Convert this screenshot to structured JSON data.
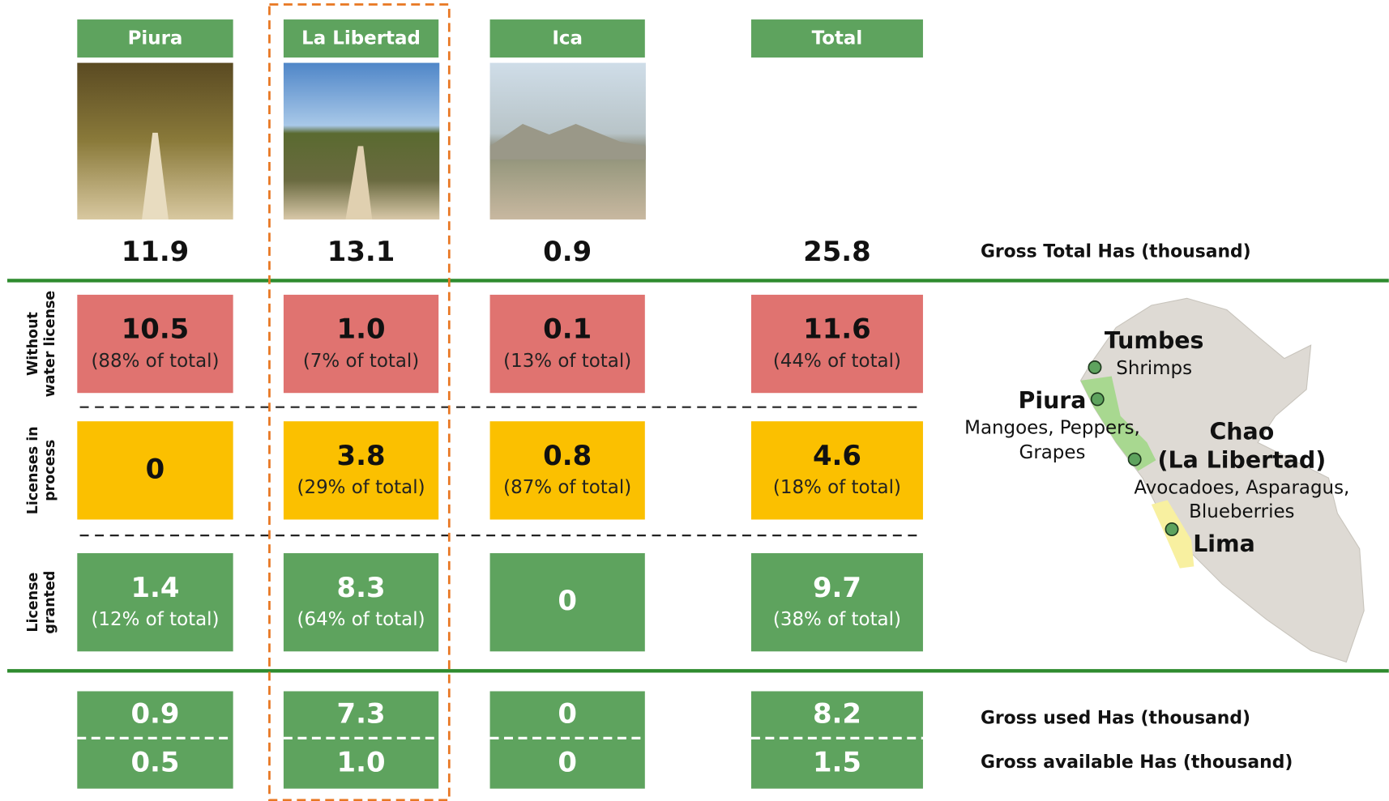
{
  "columns": [
    {
      "name": "Piura",
      "gross_total": "11.9",
      "without_license": {
        "value": "10.5",
        "share": "(88% of total)"
      },
      "in_process": {
        "value": "0"
      },
      "granted": {
        "value": "1.4",
        "share": "(12% of total)"
      },
      "used": "0.9",
      "available": "0.5"
    },
    {
      "name": "La Libertad",
      "gross_total": "13.1",
      "without_license": {
        "value": "1.0",
        "share": "(7% of total)"
      },
      "in_process": {
        "value": "3.8",
        "share": "(29% of total)"
      },
      "granted": {
        "value": "8.3",
        "share": "(64% of total)"
      },
      "used": "7.3",
      "available": "1.0"
    },
    {
      "name": "Ica",
      "gross_total": "0.9",
      "without_license": {
        "value": "0.1",
        "share": "(13% of total)"
      },
      "in_process": {
        "value": "0.8",
        "share": "(87% of total)"
      },
      "granted": {
        "value": "0"
      },
      "used": "0",
      "available": "0"
    },
    {
      "name": "Total",
      "gross_total": "25.8",
      "without_license": {
        "value": "11.6",
        "share": "(44% of total)"
      },
      "in_process": {
        "value": "4.6",
        "share": "(18% of total)"
      },
      "granted": {
        "value": "9.7",
        "share": "(38% of total)"
      },
      "used": "8.2",
      "available": "1.5"
    }
  ],
  "row_labels": {
    "without_license": [
      "Without",
      "water license"
    ],
    "in_process": [
      "Licenses in",
      "process"
    ],
    "granted": [
      "License",
      "granted"
    ]
  },
  "side_labels": {
    "gross_total": "Gross Total Has (thousand)",
    "used": "Gross used Has (thousand)",
    "available": "Gross available Has (thousand)"
  },
  "map": {
    "labels": [
      {
        "name": [
          "Tumbes"
        ],
        "detail": [
          "Shrimps"
        ]
      },
      {
        "name": [
          "Piura"
        ],
        "detail": [
          "Mangoes, Peppers,",
          "Grapes"
        ]
      },
      {
        "name": [
          "Chao",
          "(La Libertad)"
        ],
        "detail": [
          "Avocadoes, Asparagus,",
          "Blueberries"
        ]
      },
      {
        "name": [
          "Lima"
        ],
        "detail": []
      }
    ]
  }
}
